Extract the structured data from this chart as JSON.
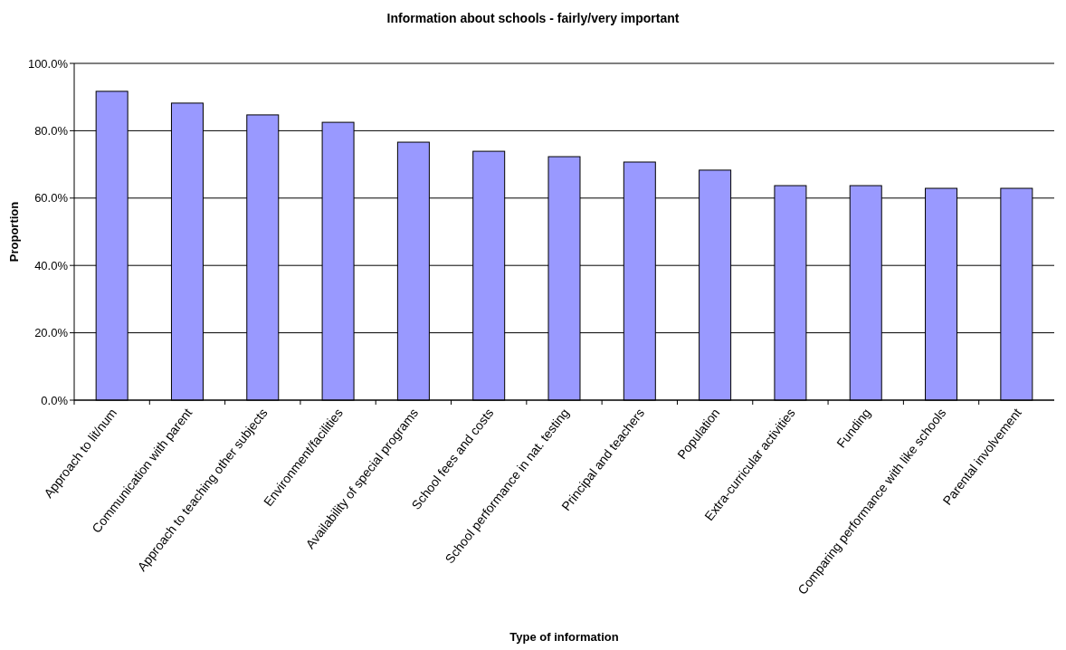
{
  "chart_data": {
    "type": "bar",
    "title": "Information about schools - fairly/very important",
    "xlabel": "Type of information",
    "ylabel": "Proportion",
    "categories": [
      "Approach to lit/num",
      "Communication with parent",
      "Approach to teaching other subjects",
      "Environment/facilities",
      "Availability of special programs",
      "School fees and costs",
      "School performance in nat. testing",
      "Principal and teachers",
      "Population",
      "Extra-curricular activities",
      "Funding",
      "Comparing performance with like schools",
      "Parental involvement"
    ],
    "values": [
      91.7,
      88.2,
      84.7,
      82.5,
      76.6,
      73.9,
      72.3,
      70.7,
      68.3,
      63.7,
      63.7,
      62.9,
      62.9
    ],
    "color": "#9999ff",
    "ylim": [
      0,
      100
    ],
    "yticks": [
      {
        "value": 0,
        "label": "0.0%"
      },
      {
        "value": 20,
        "label": "20.0%"
      },
      {
        "value": 40,
        "label": "40.0%"
      },
      {
        "value": 60,
        "label": "60.0%"
      },
      {
        "value": 80,
        "label": "80.0%"
      },
      {
        "value": 100,
        "label": "100.0%"
      }
    ],
    "grid": "y"
  }
}
